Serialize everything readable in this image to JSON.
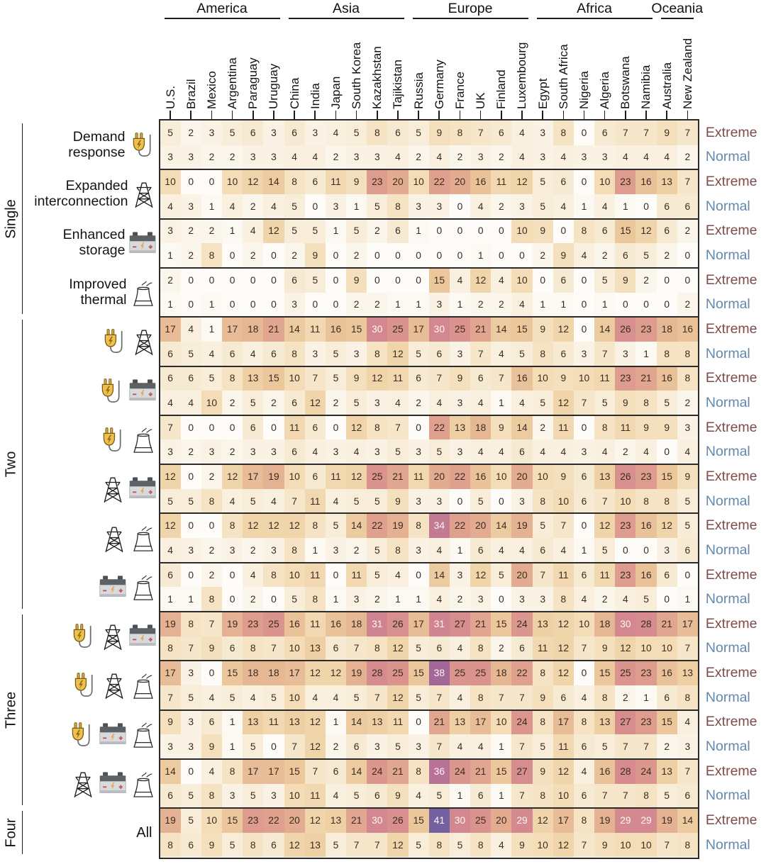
{
  "figure": {
    "condition_labels": {
      "extreme": "Extreme",
      "normal": "Normal"
    },
    "colors": {
      "extreme_label": "#804b4b",
      "normal_label": "#6288ab",
      "cell_text_dark": "#3b2c22",
      "cell_text_light": "#fdf6f2",
      "grid_border": "#2b2b2b",
      "header_line": "#1c1c1c"
    }
  },
  "chart_data": {
    "type": "heatmap",
    "title": "",
    "legend_right": [
      "Extreme",
      "Normal"
    ],
    "continents": [
      {
        "name": "America",
        "col_start": 0,
        "col_end": 5
      },
      {
        "name": "Asia",
        "col_start": 6,
        "col_end": 11
      },
      {
        "name": "Europe",
        "col_start": 12,
        "col_end": 17
      },
      {
        "name": "Africa",
        "col_start": 18,
        "col_end": 23
      },
      {
        "name": "Oceania",
        "col_start": 24,
        "col_end": 25
      }
    ],
    "countries": [
      "U.S.",
      "Brazil",
      "Mexico",
      "Argentina",
      "Paraguay",
      "Uruguay",
      "China",
      "India",
      "Japan",
      "South Korea",
      "Kazakhstan",
      "Tajikistan",
      "Russia",
      "Germany",
      "France",
      "UK",
      "Finland",
      "Luxembourg",
      "Egypt",
      "South Africa",
      "Nigeria",
      "Algeria",
      "Botswana",
      "Namibia",
      "Australia",
      "New Zealand"
    ],
    "row_groups": [
      {
        "name": "Single",
        "interventions": [
          0,
          1,
          2,
          3
        ]
      },
      {
        "name": "Two",
        "interventions": [
          4,
          5,
          6,
          7,
          8,
          9
        ]
      },
      {
        "name": "Three",
        "interventions": [
          10,
          11,
          12,
          13
        ]
      },
      {
        "name": "Four",
        "interventions": [
          14
        ]
      }
    ],
    "icon_legend": {
      "plug": "demand response",
      "tower": "expanded interconnection",
      "battery": "enhanced storage",
      "thermal": "improved thermal"
    },
    "interventions": [
      {
        "id": "demand-response",
        "label": "Demand\nresponse",
        "icons": [
          "plug"
        ],
        "extreme": [
          5,
          2,
          3,
          5,
          6,
          3,
          6,
          3,
          4,
          5,
          8,
          6,
          5,
          9,
          8,
          7,
          6,
          4,
          3,
          8,
          0,
          6,
          7,
          7,
          9,
          7
        ],
        "normal": [
          3,
          3,
          2,
          2,
          3,
          3,
          4,
          4,
          2,
          3,
          3,
          4,
          2,
          4,
          2,
          3,
          2,
          4,
          3,
          4,
          3,
          3,
          4,
          4,
          4,
          2
        ]
      },
      {
        "id": "expanded-interconnection",
        "label": "Expanded\ninterconnection",
        "icons": [
          "tower"
        ],
        "extreme": [
          10,
          0,
          0,
          10,
          12,
          14,
          8,
          6,
          11,
          9,
          23,
          20,
          10,
          22,
          20,
          16,
          11,
          12,
          5,
          6,
          0,
          10,
          23,
          16,
          13,
          7
        ],
        "normal": [
          4,
          3,
          1,
          4,
          2,
          4,
          5,
          0,
          3,
          1,
          5,
          8,
          3,
          3,
          0,
          4,
          2,
          3,
          5,
          4,
          1,
          4,
          1,
          0,
          6,
          6
        ]
      },
      {
        "id": "enhanced-storage",
        "label": "Enhanced\nstorage",
        "icons": [
          "battery"
        ],
        "extreme": [
          3,
          2,
          2,
          1,
          4,
          12,
          5,
          5,
          1,
          5,
          2,
          6,
          1,
          0,
          0,
          0,
          0,
          10,
          9,
          0,
          8,
          6,
          15,
          12,
          6,
          2
        ],
        "normal": [
          1,
          2,
          8,
          0,
          2,
          0,
          2,
          9,
          0,
          2,
          0,
          0,
          0,
          0,
          0,
          1,
          0,
          0,
          2,
          9,
          4,
          2,
          6,
          5,
          2,
          0
        ]
      },
      {
        "id": "improved-thermal",
        "label": "Improved\nthermal",
        "icons": [
          "thermal"
        ],
        "extreme": [
          2,
          0,
          0,
          0,
          0,
          0,
          6,
          5,
          0,
          9,
          0,
          0,
          0,
          15,
          4,
          12,
          4,
          10,
          0,
          6,
          0,
          5,
          9,
          2,
          0,
          0
        ],
        "normal": [
          1,
          0,
          1,
          0,
          0,
          0,
          3,
          0,
          0,
          2,
          2,
          1,
          1,
          3,
          1,
          2,
          2,
          4,
          1,
          1,
          0,
          1,
          0,
          0,
          0,
          2
        ]
      },
      {
        "id": "dr-ei",
        "label": null,
        "icons": [
          "plug",
          "tower"
        ],
        "extreme": [
          17,
          4,
          1,
          17,
          18,
          21,
          14,
          11,
          16,
          15,
          30,
          25,
          17,
          30,
          25,
          21,
          14,
          15,
          9,
          12,
          0,
          14,
          26,
          23,
          18,
          16
        ],
        "normal": [
          6,
          5,
          4,
          6,
          4,
          6,
          8,
          3,
          5,
          3,
          8,
          12,
          5,
          6,
          3,
          7,
          4,
          5,
          8,
          6,
          3,
          7,
          3,
          1,
          8,
          8
        ]
      },
      {
        "id": "dr-es",
        "label": null,
        "icons": [
          "plug",
          "battery"
        ],
        "extreme": [
          6,
          6,
          5,
          8,
          13,
          15,
          10,
          7,
          5,
          9,
          12,
          11,
          6,
          7,
          9,
          6,
          7,
          16,
          10,
          9,
          10,
          11,
          23,
          21,
          16,
          8
        ],
        "normal": [
          4,
          4,
          10,
          2,
          5,
          2,
          6,
          12,
          2,
          5,
          3,
          4,
          2,
          4,
          3,
          4,
          1,
          4,
          5,
          12,
          7,
          5,
          9,
          8,
          5,
          2
        ]
      },
      {
        "id": "dr-it",
        "label": null,
        "icons": [
          "plug",
          "thermal"
        ],
        "extreme": [
          7,
          0,
          0,
          0,
          6,
          0,
          11,
          6,
          0,
          12,
          8,
          7,
          0,
          22,
          13,
          18,
          9,
          14,
          2,
          11,
          0,
          8,
          11,
          9,
          9,
          3
        ],
        "normal": [
          3,
          2,
          3,
          2,
          3,
          3,
          6,
          4,
          3,
          4,
          3,
          5,
          3,
          5,
          3,
          4,
          4,
          6,
          4,
          4,
          3,
          4,
          2,
          4,
          0,
          4
        ]
      },
      {
        "id": "ei-es",
        "label": null,
        "icons": [
          "tower",
          "battery"
        ],
        "extreme": [
          12,
          0,
          2,
          12,
          17,
          19,
          10,
          6,
          11,
          12,
          25,
          21,
          11,
          20,
          22,
          16,
          10,
          20,
          10,
          9,
          6,
          13,
          26,
          23,
          15,
          9
        ],
        "normal": [
          5,
          5,
          8,
          4,
          5,
          4,
          7,
          11,
          4,
          5,
          5,
          9,
          3,
          3,
          0,
          5,
          0,
          3,
          8,
          10,
          6,
          7,
          10,
          8,
          8,
          5
        ]
      },
      {
        "id": "ei-it",
        "label": null,
        "icons": [
          "tower",
          "thermal"
        ],
        "extreme": [
          12,
          0,
          0,
          8,
          12,
          12,
          12,
          8,
          5,
          14,
          22,
          19,
          8,
          34,
          22,
          20,
          14,
          19,
          5,
          7,
          0,
          12,
          23,
          16,
          12,
          5
        ],
        "normal": [
          4,
          3,
          2,
          3,
          2,
          3,
          8,
          1,
          3,
          2,
          5,
          8,
          3,
          4,
          1,
          6,
          4,
          4,
          6,
          4,
          1,
          5,
          0,
          0,
          3,
          6
        ]
      },
      {
        "id": "es-it",
        "label": null,
        "icons": [
          "battery",
          "thermal"
        ],
        "extreme": [
          6,
          0,
          2,
          0,
          4,
          8,
          10,
          11,
          0,
          11,
          5,
          4,
          0,
          14,
          3,
          12,
          5,
          20,
          7,
          11,
          6,
          11,
          23,
          16,
          6,
          0
        ],
        "normal": [
          1,
          1,
          8,
          0,
          2,
          0,
          5,
          8,
          1,
          3,
          2,
          1,
          1,
          4,
          2,
          3,
          0,
          3,
          3,
          8,
          4,
          2,
          4,
          5,
          0,
          1
        ]
      },
      {
        "id": "dr-ei-es",
        "label": null,
        "icons": [
          "plug",
          "tower",
          "battery"
        ],
        "extreme": [
          19,
          8,
          7,
          19,
          23,
          25,
          16,
          11,
          16,
          18,
          31,
          26,
          17,
          31,
          27,
          21,
          15,
          24,
          13,
          12,
          10,
          18,
          30,
          28,
          21,
          17
        ],
        "normal": [
          8,
          7,
          9,
          6,
          8,
          7,
          10,
          13,
          6,
          7,
          8,
          12,
          5,
          6,
          4,
          8,
          2,
          6,
          11,
          12,
          7,
          9,
          12,
          10,
          10,
          7
        ]
      },
      {
        "id": "dr-ei-it",
        "label": null,
        "icons": [
          "plug",
          "tower",
          "thermal"
        ],
        "extreme": [
          17,
          3,
          0,
          15,
          18,
          18,
          17,
          12,
          12,
          19,
          28,
          25,
          15,
          38,
          25,
          25,
          18,
          22,
          8,
          12,
          0,
          15,
          25,
          23,
          16,
          13
        ],
        "normal": [
          7,
          5,
          4,
          5,
          4,
          5,
          10,
          4,
          4,
          5,
          7,
          12,
          5,
          7,
          4,
          8,
          7,
          7,
          9,
          6,
          4,
          8,
          2,
          1,
          6,
          8
        ]
      },
      {
        "id": "dr-es-it",
        "label": null,
        "icons": [
          "plug",
          "battery",
          "thermal"
        ],
        "extreme": [
          9,
          3,
          6,
          1,
          13,
          11,
          13,
          12,
          1,
          14,
          13,
          11,
          0,
          21,
          13,
          17,
          10,
          24,
          8,
          17,
          8,
          13,
          27,
          23,
          15,
          4
        ],
        "normal": [
          3,
          3,
          9,
          1,
          5,
          0,
          7,
          12,
          2,
          6,
          3,
          5,
          3,
          7,
          4,
          4,
          1,
          7,
          5,
          11,
          6,
          5,
          7,
          7,
          2,
          3
        ]
      },
      {
        "id": "ei-es-it",
        "label": null,
        "icons": [
          "tower",
          "battery",
          "thermal"
        ],
        "extreme": [
          14,
          0,
          4,
          8,
          17,
          17,
          15,
          7,
          6,
          14,
          24,
          21,
          8,
          36,
          24,
          21,
          15,
          27,
          9,
          12,
          4,
          16,
          28,
          24,
          13,
          7
        ],
        "normal": [
          6,
          5,
          8,
          3,
          5,
          3,
          10,
          11,
          4,
          5,
          6,
          9,
          4,
          5,
          1,
          6,
          1,
          7,
          8,
          10,
          6,
          7,
          7,
          8,
          5,
          6
        ]
      },
      {
        "id": "all",
        "label": "All",
        "icons": [],
        "extreme": [
          19,
          5,
          10,
          15,
          23,
          22,
          20,
          12,
          13,
          21,
          30,
          26,
          15,
          41,
          30,
          25,
          20,
          29,
          12,
          17,
          8,
          19,
          29,
          29,
          19,
          14
        ],
        "normal": [
          8,
          6,
          9,
          5,
          8,
          6,
          12,
          13,
          5,
          7,
          7,
          12,
          5,
          8,
          5,
          8,
          4,
          9,
          10,
          12,
          7,
          9,
          10,
          10,
          7,
          8
        ]
      }
    ],
    "colorscale": {
      "anchors": [
        [
          0,
          "#fdfcf8"
        ],
        [
          3,
          "#faf3e5"
        ],
        [
          6,
          "#f7ead2"
        ],
        [
          9,
          "#f4e0bc"
        ],
        [
          12,
          "#f0d4aa"
        ],
        [
          15,
          "#ecc79c"
        ],
        [
          18,
          "#e6b793"
        ],
        [
          21,
          "#e1a68f"
        ],
        [
          24,
          "#db978d"
        ],
        [
          27,
          "#d78d8e"
        ],
        [
          30,
          "#d38791"
        ],
        [
          33,
          "#c97f93"
        ],
        [
          36,
          "#b87295"
        ],
        [
          38,
          "#a36897"
        ],
        [
          41,
          "#7661a0"
        ]
      ],
      "light_text_min": 29,
      "value_range": [
        0,
        41
      ]
    }
  }
}
